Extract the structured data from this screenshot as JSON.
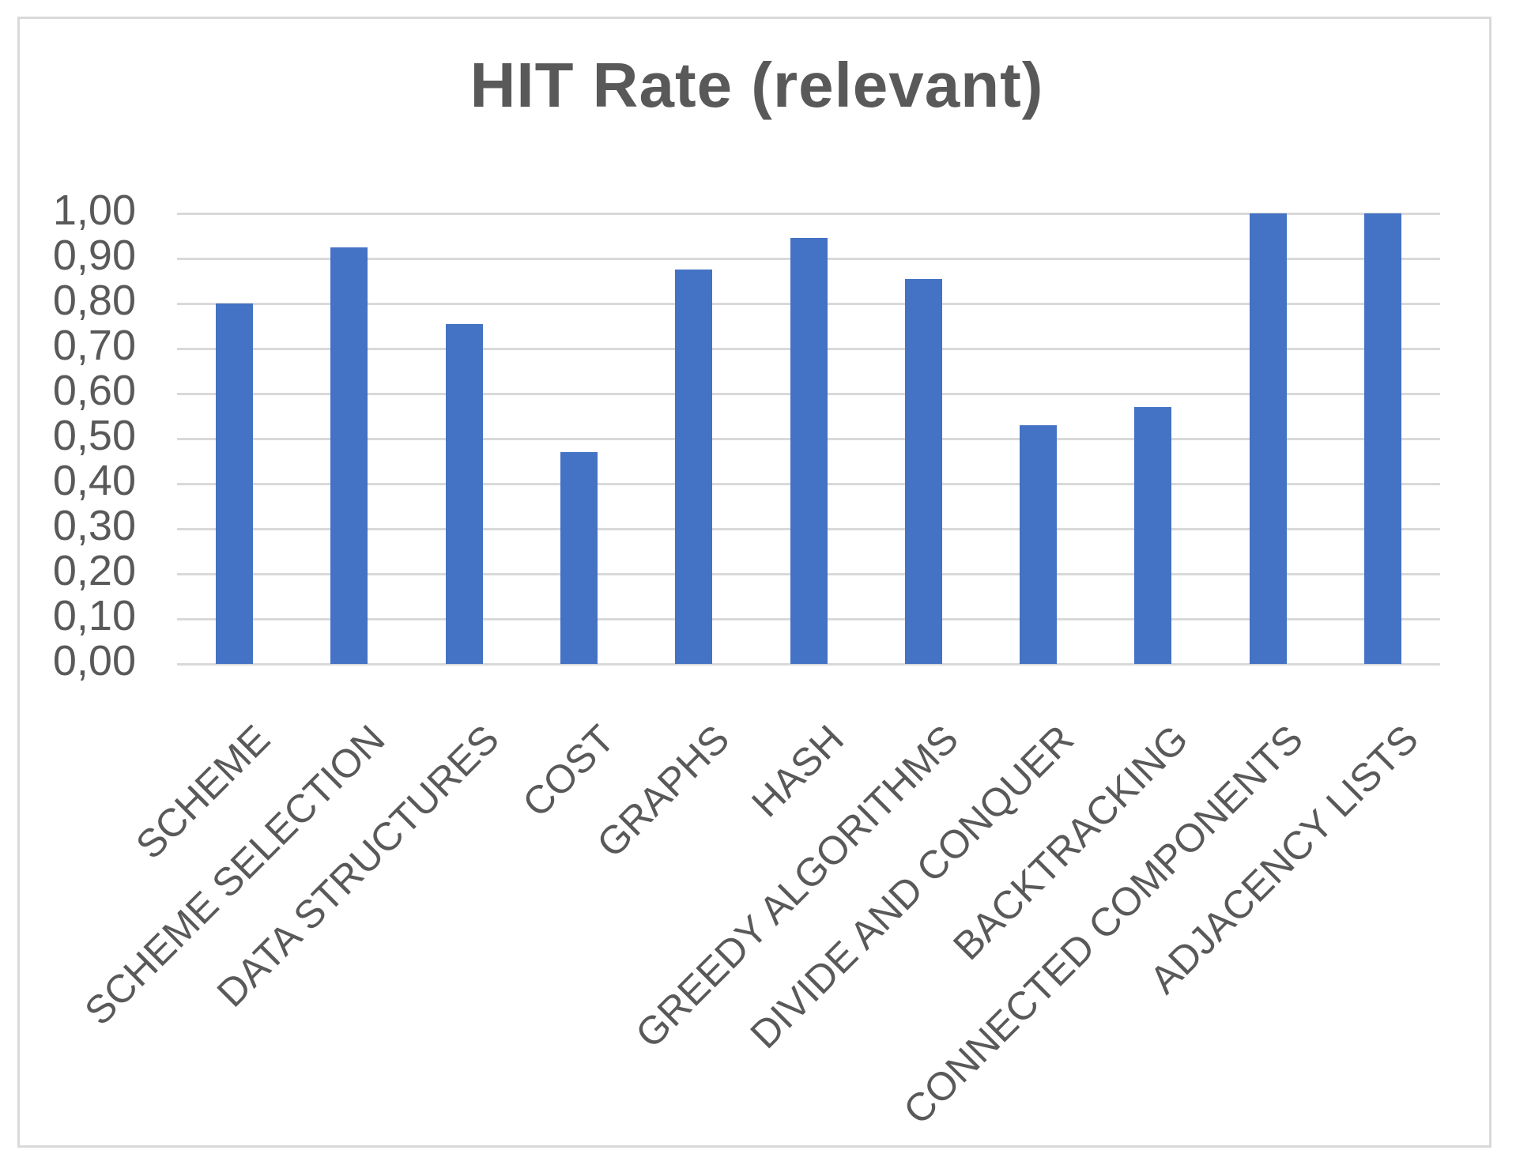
{
  "chart_data": {
    "type": "bar",
    "title": "HIT Rate (relevant)",
    "categories": [
      "SCHEME",
      "SCHEME SELECTION",
      "DATA STRUCTURES",
      "COST",
      "GRAPHS",
      "HASH",
      "GREEDY ALGORITHMS",
      "DIVIDE AND CONQUER",
      "BACKTRACKING",
      "CONNECTED COMPONENTS",
      "ADJACENCY LISTS"
    ],
    "values": [
      0.8,
      0.925,
      0.755,
      0.47,
      0.875,
      0.945,
      0.855,
      0.53,
      0.57,
      1.0,
      1.0
    ],
    "xlabel": "",
    "ylabel": "",
    "ylim": [
      0,
      1
    ],
    "y_step": 0.1,
    "y_tick_labels": [
      "1,00",
      "0,90",
      "0,80",
      "0,70",
      "0,60",
      "0,50",
      "0,40",
      "0,30",
      "0,20",
      "0,10",
      "0,00"
    ],
    "decimal_separator": ",",
    "grid": "horizontal",
    "legend_position": "none",
    "x_label_rotation_deg": 45,
    "colors": {
      "bar": "#4472C4",
      "gridline": "#d9d9d9",
      "text": "#595959",
      "frame_border": "#d9d9d9",
      "background": "#ffffff"
    }
  }
}
